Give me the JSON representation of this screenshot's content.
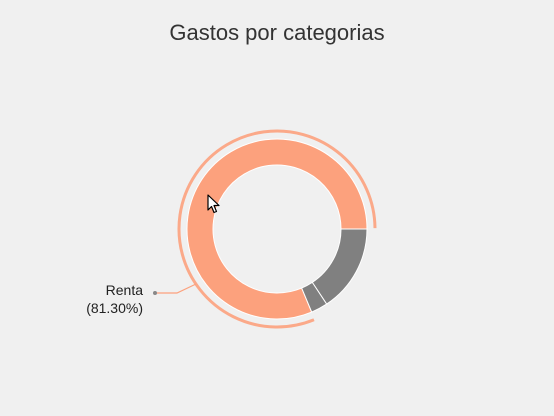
{
  "chart_data": {
    "type": "pie",
    "title": "Gastos por categorias",
    "subtype": "donut",
    "hovered": "Renta",
    "slices": [
      {
        "label": "Renta",
        "percent": 81.3,
        "color": "#fca17d"
      },
      {
        "label": "",
        "percent": 15.7,
        "color": "#808080"
      },
      {
        "label": "",
        "percent": 3.0,
        "color": "#808080"
      }
    ],
    "callout": {
      "label": "Renta",
      "value_text": "(81.30%)"
    },
    "grid": false,
    "legend": "none"
  }
}
